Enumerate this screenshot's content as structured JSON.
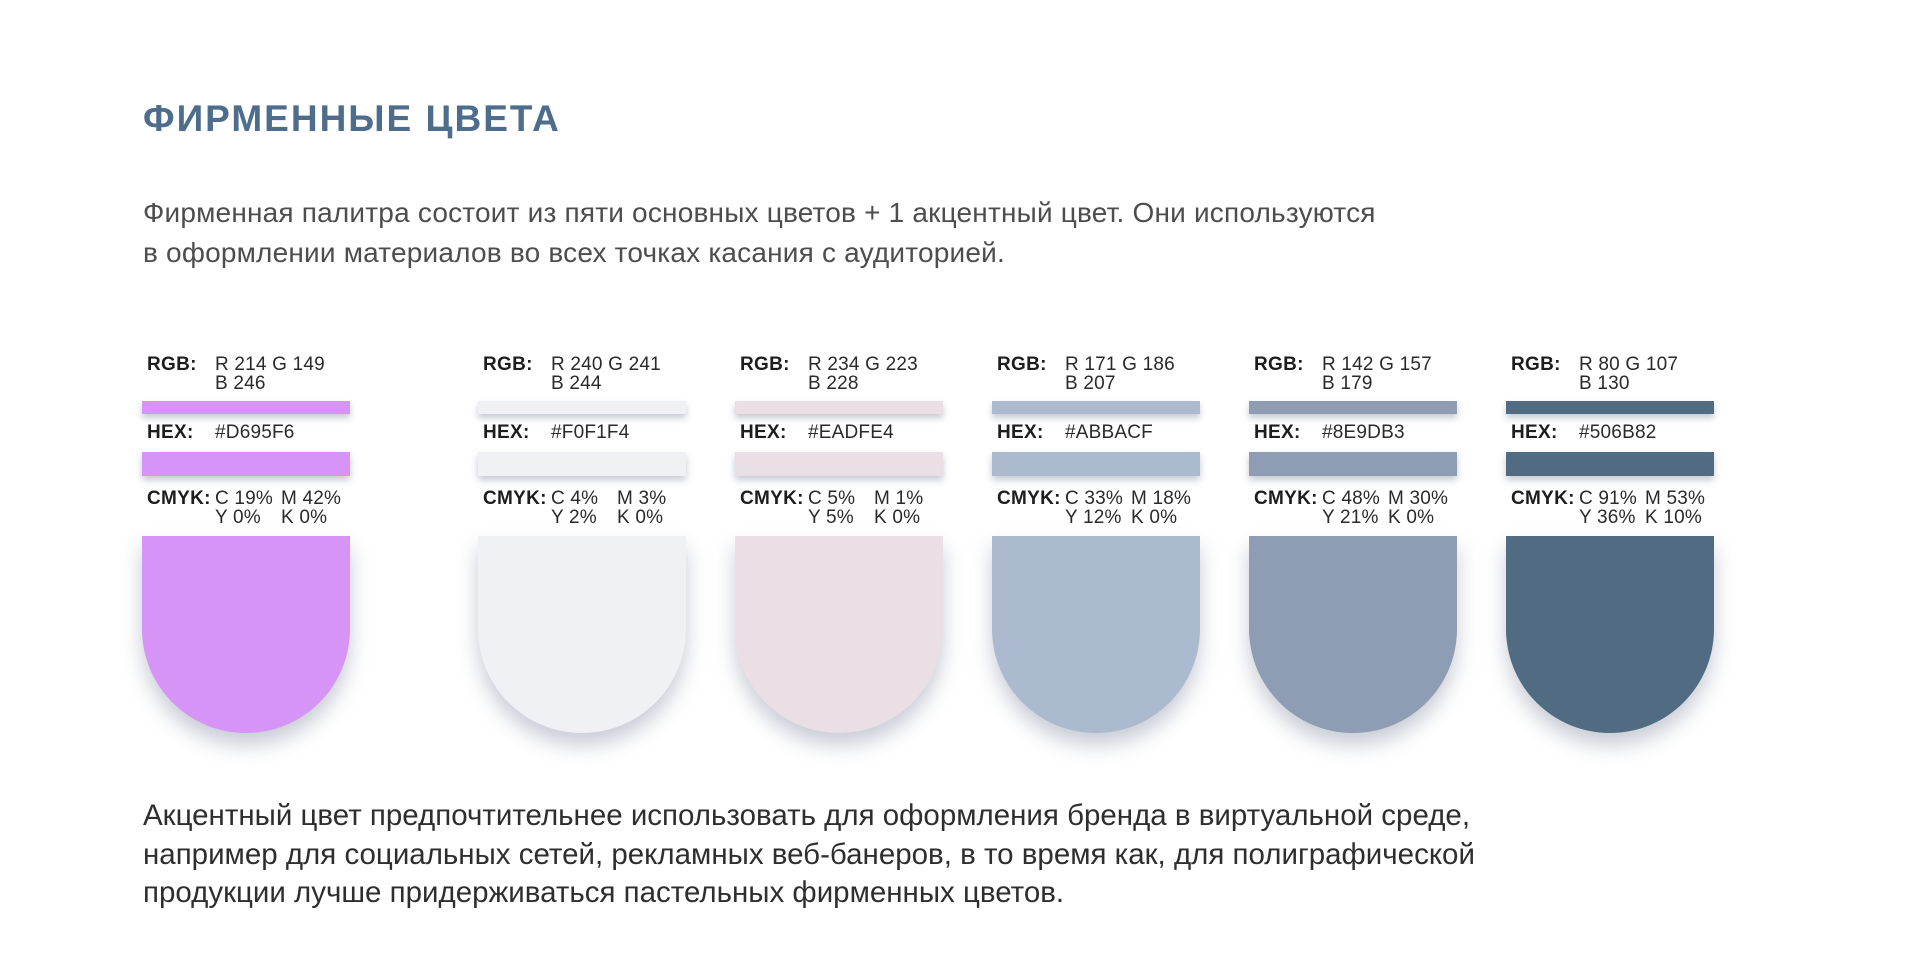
{
  "page": {
    "title": "ФИРМЕННЫЕ ЦВЕТА",
    "title_color": "#4E6D8C",
    "intro": "Фирменная палитра состоит из пяти основных цветов + 1 акцентный цвет. Они используются\nв оформлении материалов во всех точках касания с аудиторией.",
    "footer": "Акцентный цвет предпочтительнее использовать для оформления бренда в виртуальной среде,\nнапример для социальных сетей, рекламных веб-банеров, в то время как, для полиграфической\nпродукции лучше придерживаться пастельных фирменных цветов."
  },
  "labels": {
    "rgb": "RGB:",
    "hex": "HEX:",
    "cmyk": "CMYK:"
  },
  "swatches": [
    {
      "accent": true,
      "hex": "#D695F6",
      "rgb": "R 214 G 149\nB 246",
      "cmyk": {
        "c": "C 19%",
        "m": "M 42%",
        "y": "Y 0%",
        "k": "K 0%"
      }
    },
    {
      "accent": false,
      "hex": "#F0F1F4",
      "rgb": "R 240 G 241\nB 244",
      "cmyk": {
        "c": "C 4%",
        "m": "M 3%",
        "y": "Y 2%",
        "k": "K 0%"
      }
    },
    {
      "accent": false,
      "hex": "#EADFE4",
      "rgb": "R 234 G 223\nB 228",
      "cmyk": {
        "c": "C 5%",
        "m": "M 1%",
        "y": "Y 5%",
        "k": "K 0%"
      }
    },
    {
      "accent": false,
      "hex": "#ABBACF",
      "rgb": "R 171 G 186\nB 207",
      "cmyk": {
        "c": "C 33%",
        "m": "M 18%",
        "y": "Y 12%",
        "k": "K 0%"
      }
    },
    {
      "accent": false,
      "hex": "#8E9DB3",
      "rgb": "R 142 G 157\nB 179",
      "cmyk": {
        "c": "C 48%",
        "m": "M 30%",
        "y": "Y 21%",
        "k": "K 0%"
      }
    },
    {
      "accent": false,
      "hex": "#506B82",
      "rgb": "R 80 G 107\nB 130",
      "cmyk": {
        "c": "C 91%",
        "m": "M 53%",
        "y": "Y 36%",
        "k": "K 10%"
      }
    }
  ]
}
